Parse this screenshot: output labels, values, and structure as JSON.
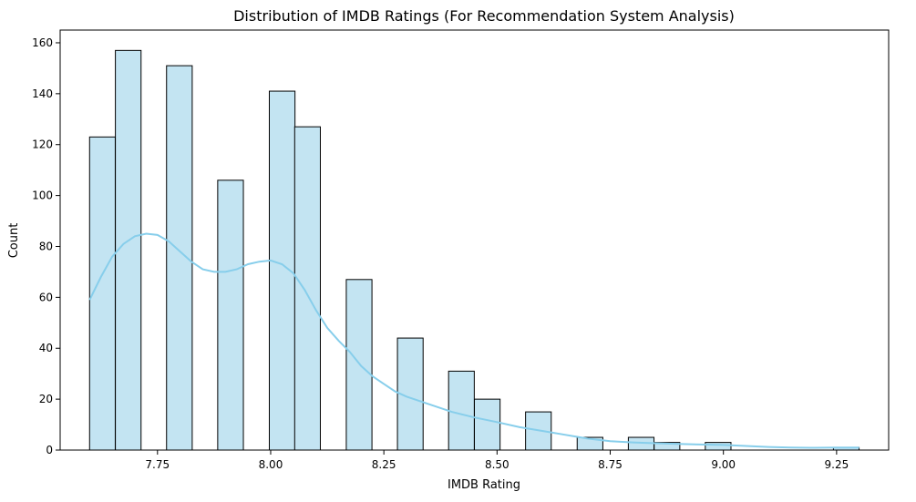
{
  "chart_data": {
    "type": "histogram",
    "title": "Distribution of IMDB Ratings (For Recommendation System Analysis)",
    "xlabel": "IMDB Rating",
    "ylabel": "Count",
    "xlim": [
      7.535,
      9.365
    ],
    "ylim": [
      0,
      165
    ],
    "xticks": [
      7.75,
      8.0,
      8.25,
      8.5,
      8.75,
      9.0,
      9.25
    ],
    "xtick_labels": [
      "7.75",
      "8.00",
      "8.25",
      "8.50",
      "8.75",
      "9.00",
      "9.25"
    ],
    "yticks": [
      0,
      20,
      40,
      60,
      80,
      100,
      120,
      140,
      160
    ],
    "ytick_labels": [
      "0",
      "20",
      "40",
      "60",
      "80",
      "100",
      "120",
      "140",
      "160"
    ],
    "bin_width": 0.0567,
    "bars": [
      {
        "x0": 7.6,
        "count": 123
      },
      {
        "x0": 7.657,
        "count": 157
      },
      {
        "x0": 7.77,
        "count": 151
      },
      {
        "x0": 7.883,
        "count": 106
      },
      {
        "x0": 7.997,
        "count": 141
      },
      {
        "x0": 8.053,
        "count": 127
      },
      {
        "x0": 8.167,
        "count": 67
      },
      {
        "x0": 8.28,
        "count": 44
      },
      {
        "x0": 8.393,
        "count": 31
      },
      {
        "x0": 8.45,
        "count": 20
      },
      {
        "x0": 8.563,
        "count": 15
      },
      {
        "x0": 8.677,
        "count": 5
      },
      {
        "x0": 8.79,
        "count": 5
      },
      {
        "x0": 8.847,
        "count": 3
      },
      {
        "x0": 8.96,
        "count": 3
      },
      {
        "x0": 9.243,
        "count": 1
      }
    ],
    "kde": {
      "x": [
        7.6,
        7.625,
        7.65,
        7.675,
        7.7,
        7.725,
        7.75,
        7.775,
        7.8,
        7.825,
        7.85,
        7.875,
        7.9,
        7.925,
        7.95,
        7.975,
        8.0,
        8.025,
        8.05,
        8.075,
        8.1,
        8.125,
        8.15,
        8.175,
        8.2,
        8.225,
        8.25,
        8.275,
        8.3,
        8.35,
        8.4,
        8.45,
        8.5,
        8.55,
        8.6,
        8.65,
        8.7,
        8.75,
        8.8,
        8.85,
        8.9,
        8.95,
        9.0,
        9.05,
        9.1,
        9.15,
        9.2,
        9.25,
        9.3
      ],
      "y": [
        59,
        68,
        76,
        81,
        84,
        85,
        84.5,
        82,
        78,
        74,
        71,
        70,
        70,
        71,
        73,
        74,
        74.5,
        73,
        69.5,
        63,
        55,
        48,
        43,
        38.5,
        33,
        29,
        26,
        23,
        21,
        18,
        15,
        12.8,
        11,
        9,
        7.5,
        6,
        4.5,
        3.5,
        3,
        2.7,
        2.4,
        2.2,
        2,
        1.6,
        1.2,
        1,
        0.9,
        1,
        1
      ]
    },
    "bar_fill": "#c3e4f2",
    "bar_edge": "#000000",
    "kde_color": "#87ceeb",
    "grid": false,
    "legend": "none"
  }
}
